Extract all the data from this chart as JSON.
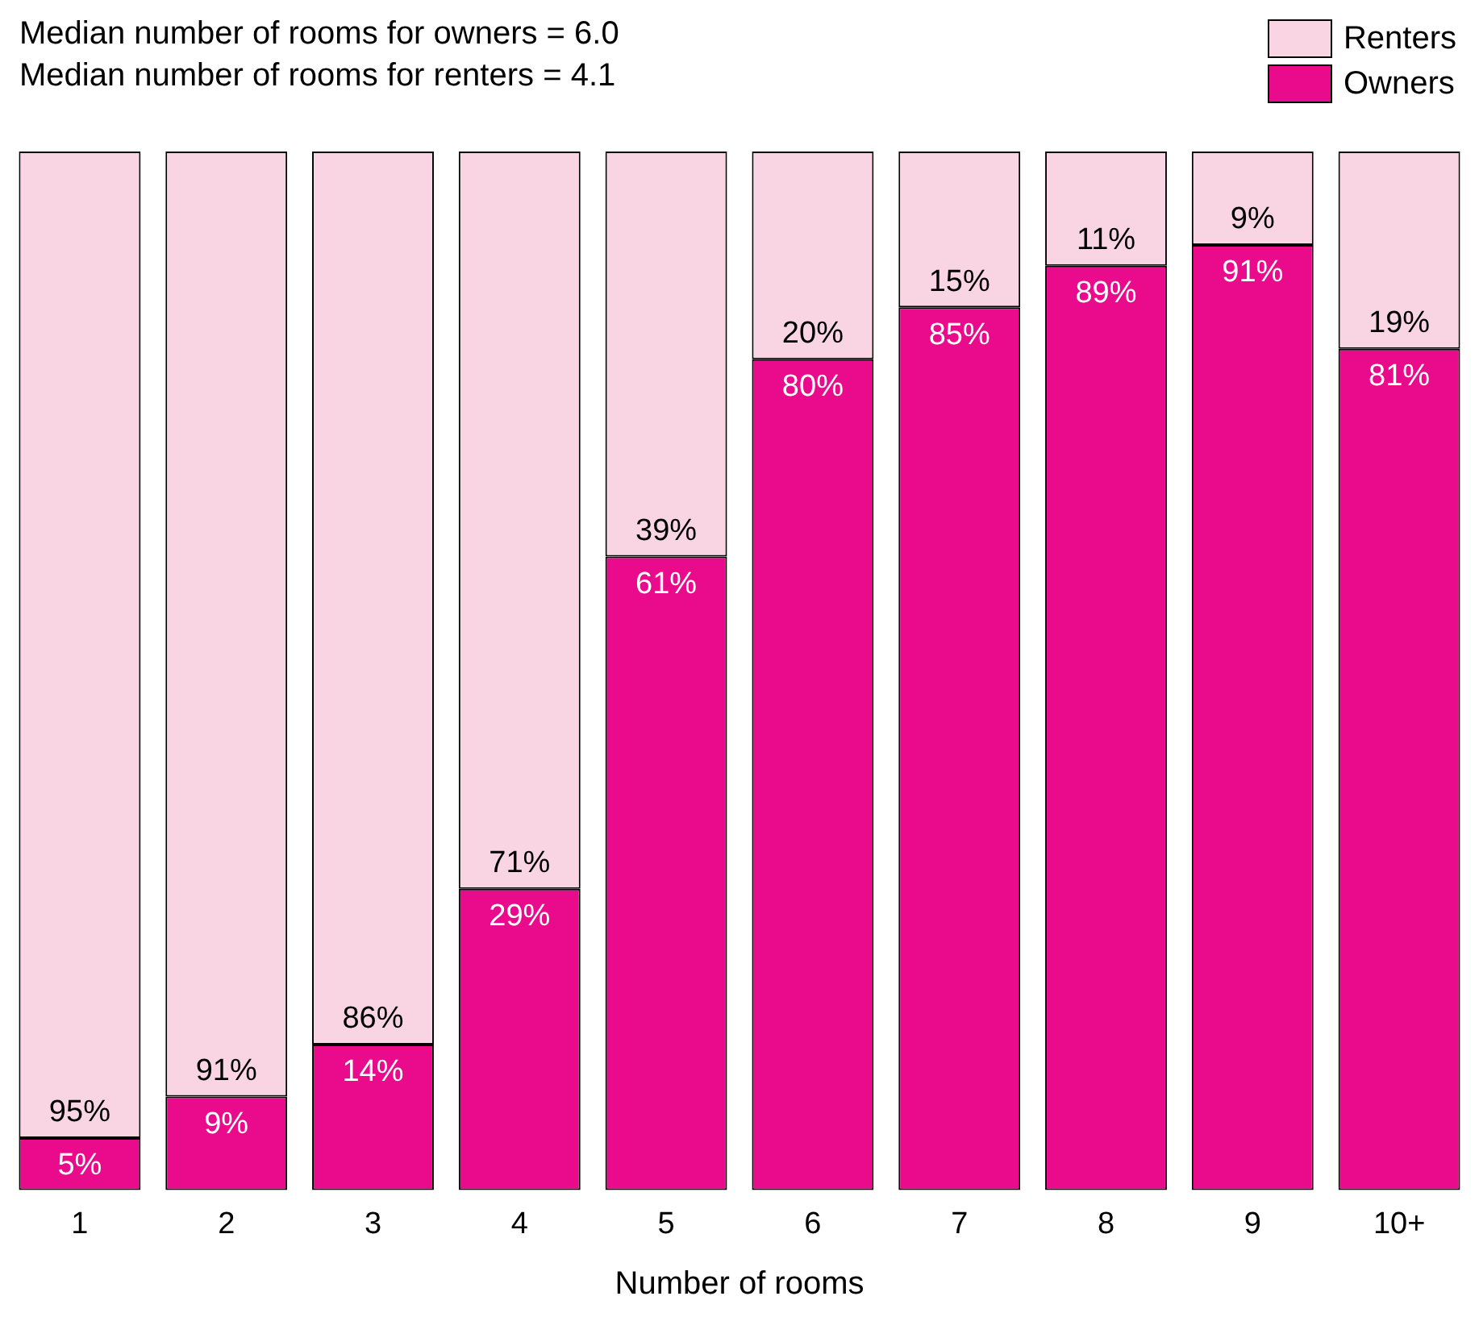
{
  "chart_data": {
    "type": "bar",
    "stacked": true,
    "xlabel": "Number of rooms",
    "annotations": [
      "Median number of rooms for owners = 6.0",
      "Median number of rooms for renters = 4.1"
    ],
    "categories": [
      "1",
      "2",
      "3",
      "4",
      "5",
      "6",
      "7",
      "8",
      "9",
      "10+"
    ],
    "ylim": [
      0,
      100
    ],
    "tick_labels": "x",
    "grid": false,
    "legend": "top right",
    "series": [
      {
        "name": "Owners",
        "color": "#ea0a8c",
        "values": [
          5,
          9,
          14,
          29,
          61,
          80,
          85,
          89,
          91,
          81
        ],
        "value_labels": [
          "5%",
          "9%",
          "14%",
          "29%",
          "61%",
          "80%",
          "85%",
          "89%",
          "91%",
          "81%"
        ]
      },
      {
        "name": "Renters",
        "color": "#f9d5e4",
        "values": [
          95,
          91,
          86,
          71,
          39,
          20,
          15,
          11,
          9,
          19
        ],
        "value_labels": [
          "95%",
          "91%",
          "86%",
          "71%",
          "39%",
          "20%",
          "15%",
          "11%",
          "9%",
          "19%"
        ]
      }
    ]
  }
}
